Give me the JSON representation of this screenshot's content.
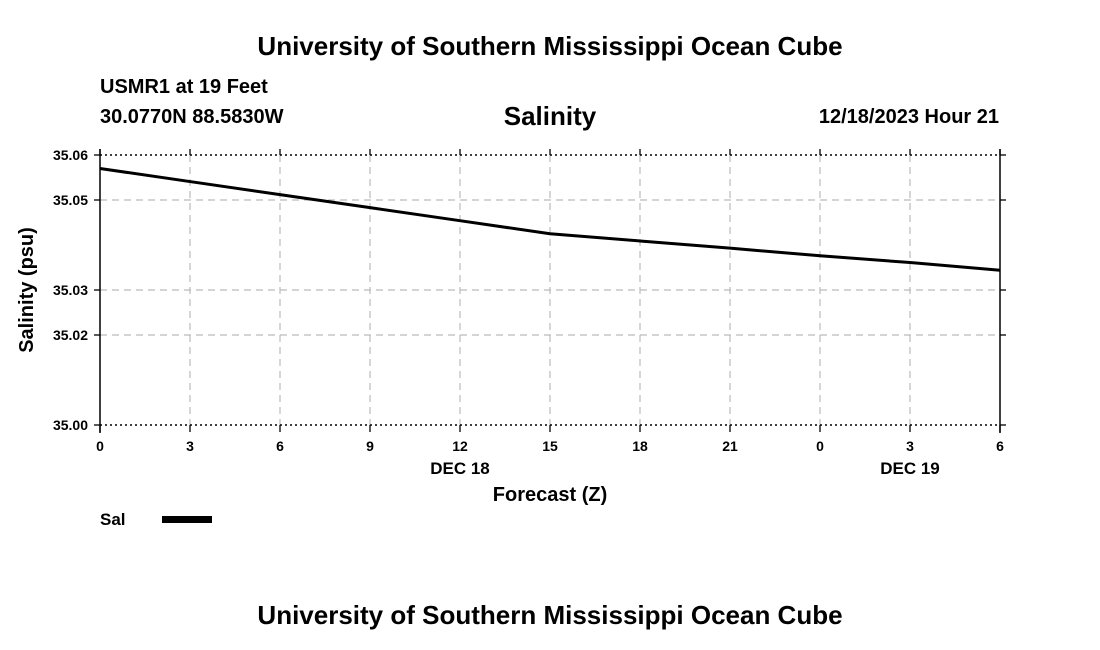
{
  "header": {
    "title": "University of Southern Mississippi Ocean Cube",
    "station": "USMR1 at 19 Feet",
    "coords": "30.0770N  88.5830W",
    "parameter": "Salinity",
    "datetime": "12/18/2023 Hour 21"
  },
  "footer": {
    "title": "University of Southern Mississippi Ocean Cube"
  },
  "chart_data": {
    "type": "line",
    "title": "Salinity",
    "xlabel": "Forecast (Z)",
    "ylabel": "Salinity (psu)",
    "x": [
      0,
      3,
      6,
      9,
      12,
      15,
      18,
      21,
      24,
      27,
      30
    ],
    "x_tick_labels": [
      "0",
      "3",
      "6",
      "9",
      "12",
      "15",
      "18",
      "21",
      "0",
      "3",
      "6"
    ],
    "x_day_labels": [
      {
        "x": 12,
        "label": "DEC 18"
      },
      {
        "x": 27,
        "label": "DEC 19"
      }
    ],
    "y_ticks": [
      35.0,
      35.02,
      35.03,
      35.05,
      35.06
    ],
    "y_tick_labels": [
      "35.00",
      "35.02",
      "35.03",
      "35.05",
      "35.06"
    ],
    "ylim": [
      35.0,
      35.06
    ],
    "xlim": [
      0,
      30
    ],
    "grid": true,
    "series": [
      {
        "name": "Sal",
        "color": "#000000",
        "values": [
          35.057,
          35.0541,
          35.0512,
          35.0483,
          35.0454,
          35.0425,
          35.0409,
          35.0393,
          35.0376,
          35.0361,
          35.0344
        ]
      }
    ],
    "legend": {
      "position": "bottom-left",
      "label": "Sal"
    }
  }
}
